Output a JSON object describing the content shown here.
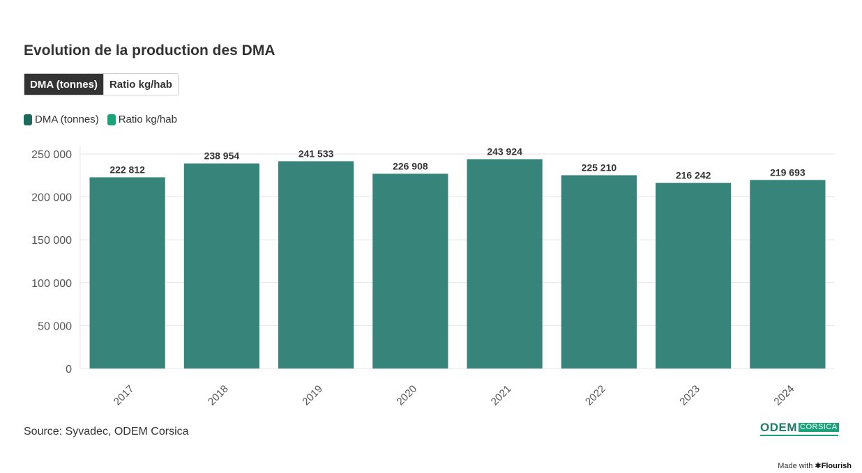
{
  "title": "Evolution de la production des DMA",
  "toggle": {
    "options": [
      "DMA (tonnes)",
      "Ratio kg/hab"
    ],
    "selected": "DMA (tonnes)"
  },
  "legend": [
    {
      "label": "DMA (tonnes)",
      "color": "#1a6b5e"
    },
    {
      "label": "Ratio kg/hab",
      "color": "#1aa37a"
    }
  ],
  "source": "Source: Syvadec, ODEM Corsica",
  "logo": {
    "main": "ODEM",
    "sub": "CORSICA"
  },
  "footer": {
    "prefix": "Made with",
    "brand": "✱Flourish"
  },
  "colors": {
    "bar": "#37857a",
    "grid": "#e6e6e6",
    "text": "#333333"
  },
  "chart_data": {
    "type": "bar",
    "categories": [
      "2017",
      "2018",
      "2019",
      "2020",
      "2021",
      "2022",
      "2023",
      "2024"
    ],
    "values": [
      222812,
      238954,
      241533,
      226908,
      243924,
      225210,
      216242,
      219693
    ],
    "value_labels": [
      "222 812",
      "238 954",
      "241 533",
      "226 908",
      "243 924",
      "225 210",
      "216 242",
      "219 693"
    ],
    "yticks": [
      0,
      50000,
      100000,
      150000,
      200000,
      250000
    ],
    "ytick_labels": [
      "0",
      "50 000",
      "100 000",
      "150 000",
      "200 000",
      "250 000"
    ],
    "ylim": [
      0,
      250000
    ],
    "xlabel": "",
    "ylabel": "",
    "grid": true
  }
}
